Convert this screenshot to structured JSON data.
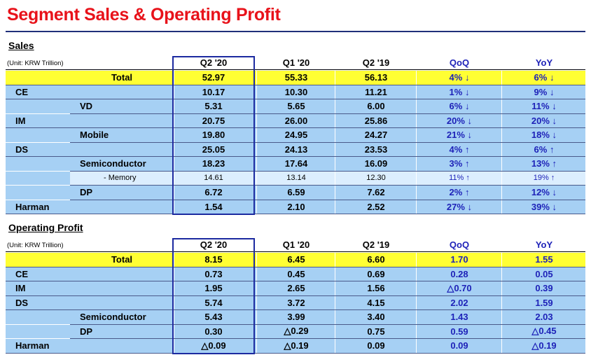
{
  "title": "Segment Sales & Operating Profit",
  "sales": {
    "heading": "Sales",
    "unit": "(Unit: KRW Trillion)",
    "columns": [
      "Q2 '20",
      "Q1 '20",
      "Q2 '19",
      "QoQ",
      "YoY"
    ],
    "rows": [
      {
        "label": "Total",
        "values": [
          "52.97",
          "55.33",
          "56.13",
          "4% ↓",
          "6% ↓"
        ]
      },
      {
        "label": "CE",
        "values": [
          "10.17",
          "10.30",
          "11.21",
          "1% ↓",
          "9% ↓"
        ]
      },
      {
        "label": "VD",
        "values": [
          "5.31",
          "5.65",
          "6.00",
          "6% ↓",
          "11% ↓"
        ]
      },
      {
        "label": "IM",
        "values": [
          "20.75",
          "26.00",
          "25.86",
          "20% ↓",
          "20% ↓"
        ]
      },
      {
        "label": "Mobile",
        "values": [
          "19.80",
          "24.95",
          "24.27",
          "21% ↓",
          "18% ↓"
        ]
      },
      {
        "label": "DS",
        "values": [
          "25.05",
          "24.13",
          "23.53",
          "4% ↑",
          "6% ↑"
        ]
      },
      {
        "label": "Semiconductor",
        "values": [
          "18.23",
          "17.64",
          "16.09",
          "3% ↑",
          "13% ↑"
        ]
      },
      {
        "label": "- Memory",
        "values": [
          "14.61",
          "13.14",
          "12.30",
          "11% ↑",
          "19% ↑"
        ]
      },
      {
        "label": "DP",
        "values": [
          "6.72",
          "6.59",
          "7.62",
          "2% ↑",
          "12% ↓"
        ]
      },
      {
        "label": "Harman",
        "values": [
          "1.54",
          "2.10",
          "2.52",
          "27% ↓",
          "39% ↓"
        ]
      }
    ]
  },
  "op": {
    "heading": "Operating Profit",
    "unit": "(Unit: KRW Trillion)",
    "columns": [
      "Q2 '20",
      "Q1 '20",
      "Q2 '19",
      "QoQ",
      "YoY"
    ],
    "rows": [
      {
        "label": "Total",
        "values": [
          "8.15",
          "6.45",
          "6.60",
          "1.70",
          "1.55"
        ]
      },
      {
        "label": "CE",
        "values": [
          "0.73",
          "0.45",
          "0.69",
          "0.28",
          "0.05"
        ]
      },
      {
        "label": "IM",
        "values": [
          "1.95",
          "2.65",
          "1.56",
          "△0.70",
          "0.39"
        ]
      },
      {
        "label": "DS",
        "values": [
          "5.74",
          "3.72",
          "4.15",
          "2.02",
          "1.59"
        ]
      },
      {
        "label": "Semiconductor",
        "values": [
          "5.43",
          "3.99",
          "3.40",
          "1.43",
          "2.03"
        ]
      },
      {
        "label": "DP",
        "values": [
          "0.30",
          "△0.29",
          "0.75",
          "0.59",
          "△0.45"
        ]
      },
      {
        "label": "Harman",
        "values": [
          "△0.09",
          "△0.19",
          "0.09",
          "0.09",
          "△0.19"
        ]
      }
    ]
  }
}
